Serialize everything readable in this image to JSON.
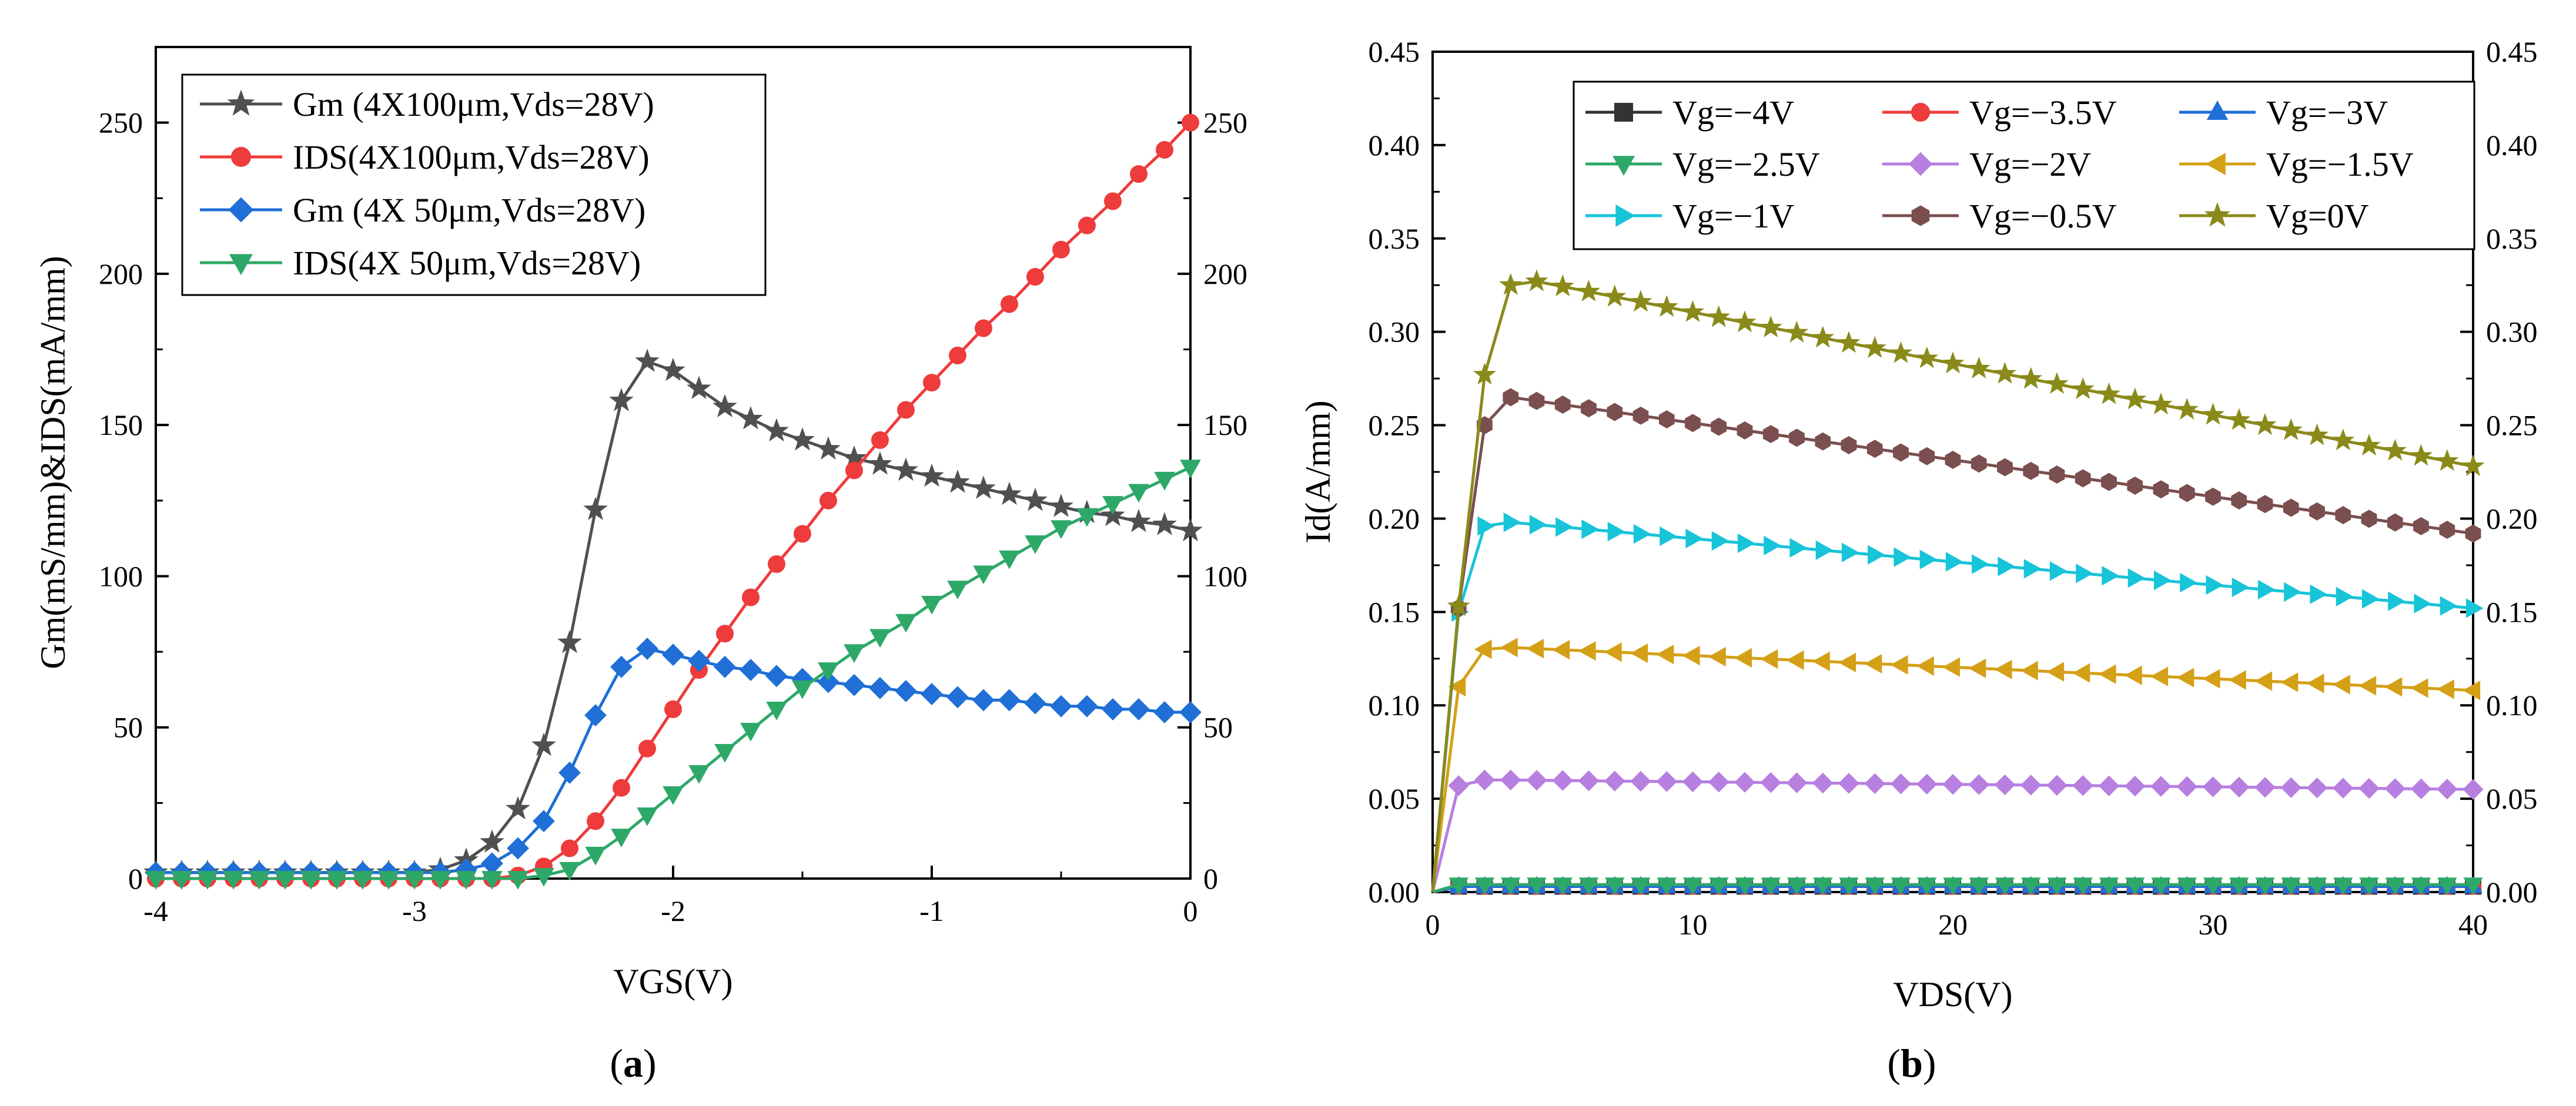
{
  "chart_data": [
    {
      "type": "line",
      "panel": "a",
      "panel_label": "a",
      "xlabel": "VGS(V)",
      "ylabel": "Gm(mS/mm)&IDS(mA/mm)",
      "xlim": [
        -4,
        0
      ],
      "ylim": [
        0,
        275
      ],
      "xticks": [
        -4,
        -3,
        -2,
        -1,
        0
      ],
      "xtick_labels": [
        "-4",
        "-3",
        "-2",
        "-1",
        "0"
      ],
      "yticks": [
        0,
        50,
        100,
        150,
        200,
        250
      ],
      "ytick_labels": [
        "0",
        "50",
        "100",
        "150",
        "200",
        "250"
      ],
      "right_ytick_labels": [
        "0",
        "50",
        "100",
        "150",
        "200",
        "250"
      ],
      "legend_position": "top-left",
      "series": [
        {
          "name": "Gm (4X100μm,Vds=28V)",
          "color": "#505050",
          "marker": "star",
          "x": [
            -4.0,
            -3.9,
            -3.8,
            -3.7,
            -3.6,
            -3.5,
            -3.4,
            -3.3,
            -3.2,
            -3.1,
            -3.0,
            -2.9,
            -2.8,
            -2.7,
            -2.6,
            -2.5,
            -2.4,
            -2.3,
            -2.2,
            -2.1,
            -2.0,
            -1.9,
            -1.8,
            -1.7,
            -1.6,
            -1.5,
            -1.4,
            -1.3,
            -1.2,
            -1.1,
            -1.0,
            -0.9,
            -0.8,
            -0.7,
            -0.6,
            -0.5,
            -0.4,
            -0.3,
            -0.2,
            -0.1,
            0.0
          ],
          "y": [
            2,
            2,
            2,
            2,
            2,
            2,
            2,
            2,
            2,
            2,
            2,
            3,
            6,
            12,
            23,
            44,
            78,
            122,
            158,
            171,
            168,
            162,
            156,
            152,
            148,
            145,
            142,
            139,
            137,
            135,
            133,
            131,
            129,
            127,
            125,
            123,
            121,
            120,
            118,
            117,
            115
          ]
        },
        {
          "name": "IDS(4X100μm,Vds=28V)",
          "color": "#ee3b3b",
          "marker": "circle",
          "x": [
            -4.0,
            -3.9,
            -3.8,
            -3.7,
            -3.6,
            -3.5,
            -3.4,
            -3.3,
            -3.2,
            -3.1,
            -3.0,
            -2.9,
            -2.8,
            -2.7,
            -2.6,
            -2.5,
            -2.4,
            -2.3,
            -2.2,
            -2.1,
            -2.0,
            -1.9,
            -1.8,
            -1.7,
            -1.6,
            -1.5,
            -1.4,
            -1.3,
            -1.2,
            -1.1,
            -1.0,
            -0.9,
            -0.8,
            -0.7,
            -0.6,
            -0.5,
            -0.4,
            -0.3,
            -0.2,
            -0.1,
            0.0
          ],
          "y": [
            0,
            0,
            0,
            0,
            0,
            0,
            0,
            0,
            0,
            0,
            0,
            0,
            0,
            0,
            1,
            4,
            10,
            19,
            30,
            43,
            56,
            69,
            81,
            93,
            104,
            114,
            125,
            135,
            145,
            155,
            164,
            173,
            182,
            190,
            199,
            208,
            216,
            224,
            233,
            241,
            250
          ]
        },
        {
          "name": "Gm (4X 50μm,Vds=28V)",
          "color": "#1f6fd6",
          "marker": "diamond",
          "x": [
            -4.0,
            -3.9,
            -3.8,
            -3.7,
            -3.6,
            -3.5,
            -3.4,
            -3.3,
            -3.2,
            -3.1,
            -3.0,
            -2.9,
            -2.8,
            -2.7,
            -2.6,
            -2.5,
            -2.4,
            -2.3,
            -2.2,
            -2.1,
            -2.0,
            -1.9,
            -1.8,
            -1.7,
            -1.6,
            -1.5,
            -1.4,
            -1.3,
            -1.2,
            -1.1,
            -1.0,
            -0.9,
            -0.8,
            -0.7,
            -0.6,
            -0.5,
            -0.4,
            -0.3,
            -0.2,
            -0.1,
            0.0
          ],
          "y": [
            2,
            2,
            2,
            2,
            2,
            2,
            2,
            2,
            2,
            2,
            2,
            2,
            3,
            5,
            10,
            19,
            35,
            54,
            70,
            76,
            74,
            72,
            70,
            69,
            67,
            66,
            65,
            64,
            63,
            62,
            61,
            60,
            59,
            59,
            58,
            57,
            57,
            56,
            56,
            55,
            55
          ]
        },
        {
          "name": "IDS(4X 50μm,Vds=28V)",
          "color": "#2ea868",
          "marker": "triangle-down",
          "x": [
            -4.0,
            -3.9,
            -3.8,
            -3.7,
            -3.6,
            -3.5,
            -3.4,
            -3.3,
            -3.2,
            -3.1,
            -3.0,
            -2.9,
            -2.8,
            -2.7,
            -2.6,
            -2.5,
            -2.4,
            -2.3,
            -2.2,
            -2.1,
            -2.0,
            -1.9,
            -1.8,
            -1.7,
            -1.6,
            -1.5,
            -1.4,
            -1.3,
            -1.2,
            -1.1,
            -1.0,
            -0.9,
            -0.8,
            -0.7,
            -0.6,
            -0.5,
            -0.4,
            -0.3,
            -0.2,
            -0.1,
            0.0
          ],
          "y": [
            0,
            0,
            0,
            0,
            0,
            0,
            0,
            0,
            0,
            0,
            0,
            0,
            0,
            0,
            0,
            1,
            3,
            8,
            14,
            21,
            28,
            35,
            42,
            49,
            56,
            63,
            69,
            75,
            80,
            85,
            91,
            96,
            101,
            106,
            111,
            116,
            120,
            124,
            128,
            132,
            136
          ]
        }
      ]
    },
    {
      "type": "line",
      "panel": "b",
      "panel_label": "b",
      "xlabel": "VDS(V)",
      "ylabel": "Id(A/mm)",
      "xlim": [
        0,
        40
      ],
      "ylim": [
        0,
        0.45
      ],
      "xticks": [
        0,
        10,
        20,
        30,
        40
      ],
      "xtick_labels": [
        "0",
        "10",
        "20",
        "30",
        "40"
      ],
      "yticks": [
        0,
        0.05,
        0.1,
        0.15,
        0.2,
        0.25,
        0.3,
        0.35,
        0.4,
        0.45
      ],
      "ytick_labels": [
        "0.00",
        "0.05",
        "0.10",
        "0.15",
        "0.20",
        "0.25",
        "0.30",
        "0.35",
        "0.40",
        "0.45"
      ],
      "right_ytick_labels": [
        "0.00",
        "0.05",
        "0.10",
        "0.15",
        "0.20",
        "0.25",
        "0.30",
        "0.35",
        "0.40",
        "0.45"
      ],
      "legend_position": "top-right",
      "legend_columns": 3,
      "series": [
        {
          "name": "Vg=−4V",
          "color": "#333333",
          "marker": "square",
          "x": [
            0,
            1,
            2,
            40
          ],
          "y": [
            0,
            0.003,
            0.003,
            0.003
          ]
        },
        {
          "name": "Vg=−3.5V",
          "color": "#ee3b3b",
          "marker": "circle",
          "x": [
            0,
            1,
            2,
            40
          ],
          "y": [
            0,
            0.003,
            0.003,
            0.003
          ]
        },
        {
          "name": "Vg=−3V",
          "color": "#1f6fd6",
          "marker": "triangle-up",
          "x": [
            0,
            1,
            2,
            40
          ],
          "y": [
            0,
            0.003,
            0.003,
            0.003
          ]
        },
        {
          "name": "Vg=−2.5V",
          "color": "#2ea868",
          "marker": "triangle-down",
          "x": [
            0,
            1,
            2,
            40
          ],
          "y": [
            0,
            0.004,
            0.004,
            0.004
          ]
        },
        {
          "name": "Vg=−2V",
          "color": "#b77fe0",
          "marker": "diamond",
          "x": [
            0,
            1,
            2,
            3,
            40
          ],
          "y": [
            0,
            0.057,
            0.06,
            0.06,
            0.055
          ]
        },
        {
          "name": "Vg=−1.5V",
          "color": "#d4a017",
          "marker": "triangle-left",
          "x": [
            0,
            1,
            2,
            3,
            40
          ],
          "y": [
            0,
            0.11,
            0.13,
            0.131,
            0.108
          ]
        },
        {
          "name": "Vg=−1V",
          "color": "#17c4d8",
          "marker": "triangle-right",
          "x": [
            0,
            1,
            2,
            3,
            40
          ],
          "y": [
            0,
            0.15,
            0.196,
            0.198,
            0.152
          ]
        },
        {
          "name": "Vg=−0.5V",
          "color": "#7b4f4f",
          "marker": "hexagon",
          "x": [
            0,
            1,
            2,
            3,
            4,
            40
          ],
          "y": [
            0,
            0.152,
            0.25,
            0.265,
            0.263,
            0.192
          ]
        },
        {
          "name": "Vg=0V",
          "color": "#8a8a1a",
          "marker": "star",
          "x": [
            0,
            1,
            2,
            3,
            4,
            40
          ],
          "y": [
            0,
            0.153,
            0.277,
            0.325,
            0.327,
            0.228
          ]
        }
      ]
    }
  ]
}
